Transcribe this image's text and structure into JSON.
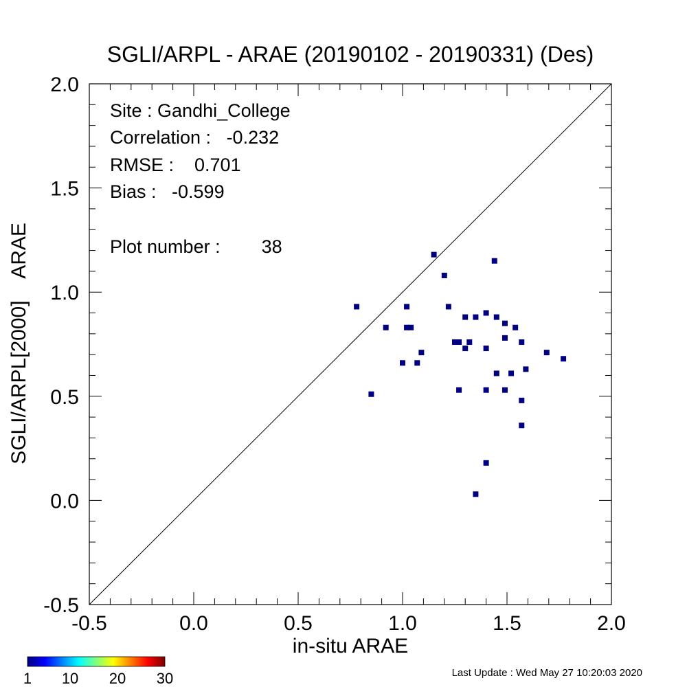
{
  "chart_data": {
    "type": "scatter",
    "title": "SGLI/ARPL - ARAE (20190102 - 20190331) (Des)",
    "xlabel": "in-situ ARAE",
    "ylabel": "SGLI/ARPL[2000]    ARAE",
    "xlim": [
      -0.5,
      2.0
    ],
    "ylim": [
      -0.5,
      2.0
    ],
    "x_ticks": [
      "-0.5",
      "0.0",
      "0.5",
      "1.0",
      "1.5",
      "2.0"
    ],
    "y_ticks": [
      "-0.5",
      "0.0",
      "0.5",
      "1.0",
      "1.5",
      "2.0"
    ],
    "one_to_one_line": true,
    "point_color": "#000080",
    "stats": {
      "site": "Site : Gandhi_College",
      "correlation": "Correlation :   -0.232",
      "rmse": "RMSE :    0.701",
      "bias": "Bias :   -0.599",
      "plot_number": "Plot number :        38"
    },
    "points": [
      [
        0.78,
        0.93
      ],
      [
        0.85,
        0.51
      ],
      [
        0.92,
        0.83
      ],
      [
        1.0,
        0.66
      ],
      [
        1.02,
        0.93
      ],
      [
        1.02,
        0.83
      ],
      [
        1.04,
        0.83
      ],
      [
        1.07,
        0.66
      ],
      [
        1.09,
        0.71
      ],
      [
        1.15,
        1.18
      ],
      [
        1.2,
        1.08
      ],
      [
        1.22,
        0.93
      ],
      [
        1.25,
        0.76
      ],
      [
        1.27,
        0.76
      ],
      [
        1.27,
        0.53
      ],
      [
        1.3,
        0.88
      ],
      [
        1.3,
        0.73
      ],
      [
        1.32,
        0.76
      ],
      [
        1.35,
        0.88
      ],
      [
        1.35,
        0.03
      ],
      [
        1.4,
        0.9
      ],
      [
        1.4,
        0.73
      ],
      [
        1.4,
        0.53
      ],
      [
        1.4,
        0.18
      ],
      [
        1.44,
        1.15
      ],
      [
        1.45,
        0.88
      ],
      [
        1.45,
        0.61
      ],
      [
        1.49,
        0.85
      ],
      [
        1.49,
        0.78
      ],
      [
        1.49,
        0.53
      ],
      [
        1.52,
        0.61
      ],
      [
        1.54,
        0.83
      ],
      [
        1.57,
        0.76
      ],
      [
        1.57,
        0.48
      ],
      [
        1.57,
        0.36
      ],
      [
        1.59,
        0.63
      ],
      [
        1.69,
        0.71
      ],
      [
        1.77,
        0.68
      ]
    ],
    "colorbar": {
      "labels": [
        "1",
        "10",
        "20",
        "30"
      ],
      "colors": [
        "#00007f",
        "#0000ff",
        "#007fff",
        "#00ffff",
        "#7fff7f",
        "#ffff00",
        "#ff7f00",
        "#ff0000",
        "#7f0000"
      ]
    },
    "footer": "Last Update : Wed May 27 10:20:03 2020"
  }
}
